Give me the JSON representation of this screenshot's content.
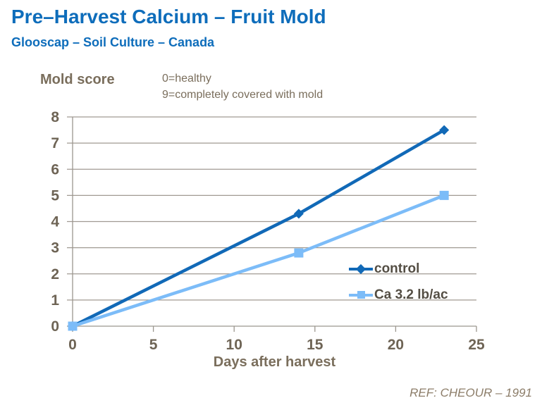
{
  "header": {
    "title": "Pre–Harvest Calcium – Fruit Mold",
    "subtitle": "Glooscap – Soil Culture – Canada"
  },
  "chart_data": {
    "type": "line",
    "title": "Pre–Harvest Calcium – Fruit Mold",
    "subtitle": "Glooscap – Soil Culture – Canada",
    "ylabel": "Mold score",
    "xlabel": "Days after harvest",
    "annotation_line1": "0=healthy",
    "annotation_line2": "9=completely covered with mold",
    "xlim": [
      0,
      25
    ],
    "ylim": [
      0,
      8
    ],
    "xticks": [
      0,
      5,
      10,
      15,
      20,
      25
    ],
    "yticks": [
      0,
      1,
      2,
      3,
      4,
      5,
      6,
      7,
      8
    ],
    "grid": "horizontal only",
    "legend_position": "inside right",
    "series": [
      {
        "name": "control",
        "color": "#1169b7",
        "marker": "diamond",
        "x": [
          0,
          14,
          23
        ],
        "y": [
          0,
          4.3,
          7.5
        ]
      },
      {
        "name": "Ca 3.2 lb/ac",
        "color": "#7cbcf8",
        "marker": "square",
        "x": [
          0,
          14,
          23
        ],
        "y": [
          0,
          2.8,
          5.0
        ]
      }
    ]
  },
  "footer": {
    "ref": "REF: CHEOUR – 1991"
  },
  "colors": {
    "title_blue": "#0e6dbb",
    "axis_text": "#6e6455",
    "label_text": "#7a6e5c",
    "legend_text": "#544e44",
    "gridline": "#a09a92",
    "axis_line": "#9b968e",
    "ref_text": "#8c7d69"
  }
}
